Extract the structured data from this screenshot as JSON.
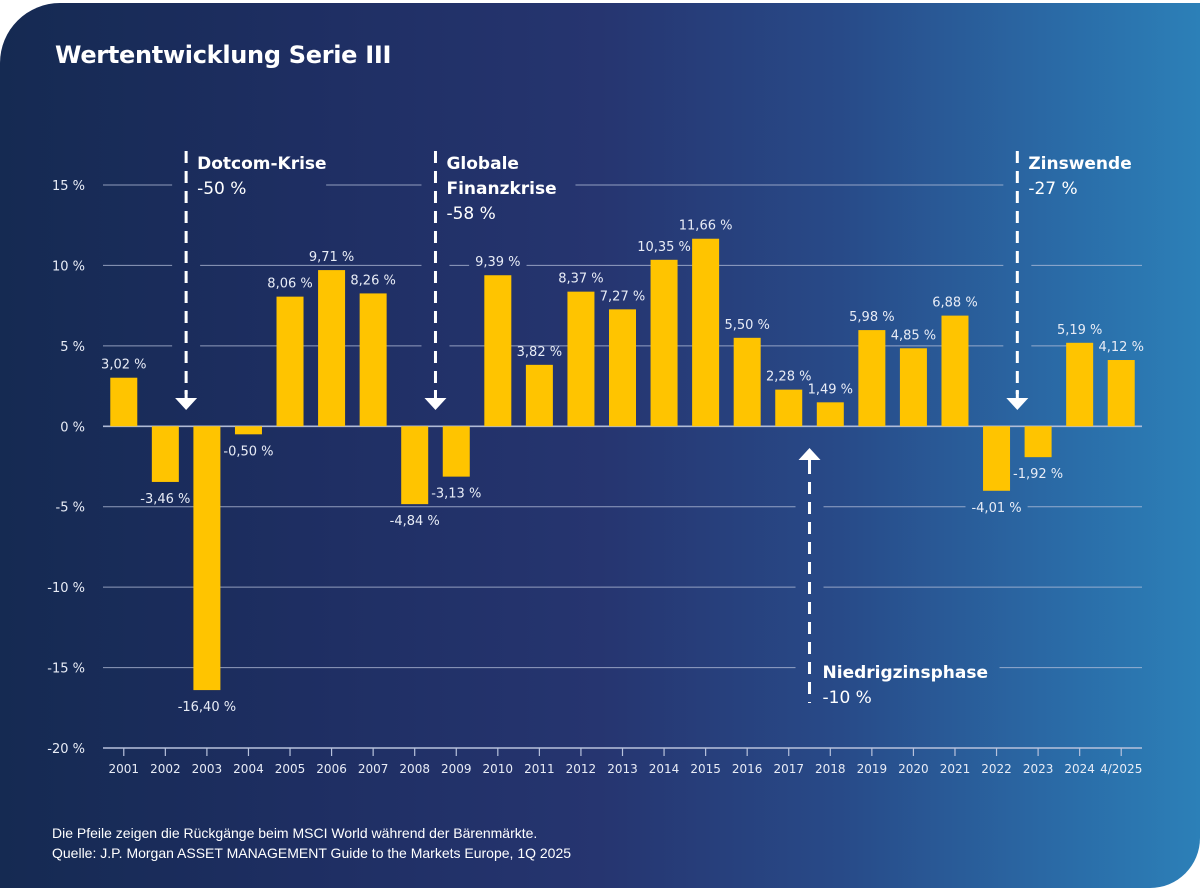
{
  "title": "Wertentwicklung Serie III",
  "footnote": {
    "line1": "Die Pfeile zeigen die Rückgänge beim MSCI World während der Bärenmärkte.",
    "line2": "Quelle:  J.P. Morgan ASSET MANAGEMENT Guide to the Markets Europe, 1Q 2025"
  },
  "colors": {
    "bar": "#ffc400",
    "grid": "#b8c2dc",
    "text": "#e8ecf6",
    "arrow": "#ffffff"
  },
  "chart_data": {
    "type": "bar",
    "title": "Wertentwicklung Serie III",
    "xlabel": "",
    "ylabel": "",
    "ylim": [
      -20,
      15
    ],
    "yticks": [
      15,
      10,
      5,
      0,
      -5,
      -10,
      -15,
      -20
    ],
    "ytick_labels": [
      "15 %",
      "10 %",
      "5 %",
      "0 %",
      "-5 %",
      "-10 %",
      "-15 %",
      "-20 %"
    ],
    "grid": true,
    "legend": "none",
    "categories": [
      "2001",
      "2002",
      "2003",
      "2004",
      "2005",
      "2006",
      "2007",
      "2008",
      "2009",
      "2010",
      "2011",
      "2012",
      "2013",
      "2014",
      "2015",
      "2016",
      "2017",
      "2018",
      "2019",
      "2020",
      "2021",
      "2022",
      "2023",
      "2024",
      "4/2025"
    ],
    "values": [
      3.02,
      -3.46,
      -16.4,
      -0.5,
      8.06,
      9.71,
      8.26,
      -4.84,
      -3.13,
      9.39,
      3.82,
      8.37,
      7.27,
      10.35,
      11.66,
      5.5,
      2.28,
      1.49,
      5.98,
      4.85,
      6.88,
      -4.01,
      -1.92,
      5.19,
      4.12
    ],
    "data_labels": [
      "3,02 %",
      "-3,46 %",
      "-16,40 %",
      "-0,50 %",
      "8,06 %",
      "9,71 %",
      "8,26 %",
      "-4,84 %",
      "-3,13 %",
      "9,39 %",
      "3,82 %",
      "8,37 %",
      "7,27 %",
      "10,35 %",
      "11,66 %",
      "5,50 %",
      "2,28 %",
      "1,49 %",
      "5,98 %",
      "4,85 %",
      "6,88 %",
      "-4,01 %",
      "-1,92 %",
      "5,19 %",
      "4,12 %"
    ],
    "annotations": [
      {
        "title": "Dotcom-Krise",
        "value": "-50 %",
        "direction": "down",
        "between": [
          "2002",
          "2003"
        ]
      },
      {
        "title": "Globale Finanzkrise",
        "title_lines": [
          "Globale",
          "Finanzkrise"
        ],
        "value": "-58 %",
        "direction": "down",
        "between": [
          "2008",
          "2009"
        ]
      },
      {
        "title": "Niedrigzinsphase",
        "value": "-10 %",
        "direction": "up",
        "between": [
          "2017",
          "2018"
        ]
      },
      {
        "title": "Zinswende",
        "value": "-27 %",
        "direction": "down",
        "between": [
          "2022",
          "2023"
        ]
      }
    ]
  }
}
